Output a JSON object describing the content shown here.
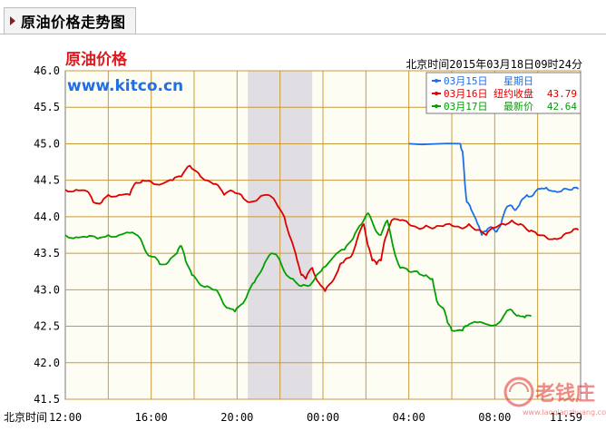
{
  "panel": {
    "tab_title": "原油价格走势图"
  },
  "chart_data": {
    "type": "line",
    "title": "原油价格",
    "source": "www.kitco.cn",
    "timestamp": "北京时间2015年03月18日09时24分",
    "x_axis_label": "北京时间",
    "x_ticks": [
      "12:00",
      "16:00",
      "20:00",
      "00:00",
      "04:00",
      "08:00",
      "11:59"
    ],
    "y_ticks": [
      "46.0",
      "45.5",
      "45.0",
      "44.5",
      "44.0",
      "43.5",
      "43.0",
      "42.5",
      "42.0",
      "41.5"
    ],
    "ylim": [
      41.5,
      46.0
    ],
    "xlim_hours": [
      12,
      36
    ],
    "shaded_period_hours": [
      20.5,
      23.5
    ],
    "grid": true,
    "legend": [
      {
        "date": "03月15日",
        "label": "星期日",
        "value": "",
        "color": "#1e6fe6"
      },
      {
        "date": "03月16日",
        "label": "纽约收盘",
        "value": "43.79",
        "color": "#dd0000"
      },
      {
        "date": "03月17日",
        "label": "最新价",
        "value": "42.64",
        "color": "#00a000"
      }
    ],
    "series": [
      {
        "name": "03月15日",
        "color": "#1e6fe6",
        "points": [
          [
            28.0,
            45.0
          ],
          [
            30.4,
            45.0
          ],
          [
            30.5,
            44.9
          ],
          [
            30.6,
            44.5
          ],
          [
            30.7,
            44.2
          ],
          [
            30.9,
            44.1
          ],
          [
            31.2,
            43.9
          ],
          [
            31.4,
            43.75
          ],
          [
            31.6,
            43.8
          ],
          [
            31.9,
            43.85
          ],
          [
            32.1,
            43.8
          ],
          [
            32.3,
            43.9
          ],
          [
            32.5,
            44.1
          ],
          [
            32.8,
            44.15
          ],
          [
            33.0,
            44.1
          ],
          [
            33.2,
            44.2
          ],
          [
            33.5,
            44.3
          ],
          [
            33.8,
            44.3
          ],
          [
            34.1,
            44.38
          ],
          [
            34.4,
            44.4
          ],
          [
            34.8,
            44.35
          ],
          [
            35.2,
            44.38
          ],
          [
            35.6,
            44.37
          ],
          [
            35.9,
            44.38
          ]
        ]
      },
      {
        "name": "03月16日",
        "color": "#dd0000",
        "points": [
          [
            12.0,
            44.37
          ],
          [
            12.5,
            44.37
          ],
          [
            13.0,
            44.35
          ],
          [
            13.3,
            44.2
          ],
          [
            13.7,
            44.2
          ],
          [
            14.0,
            44.3
          ],
          [
            14.5,
            44.3
          ],
          [
            15.0,
            44.3
          ],
          [
            15.3,
            44.47
          ],
          [
            15.6,
            44.5
          ],
          [
            16.0,
            44.48
          ],
          [
            16.5,
            44.45
          ],
          [
            17.0,
            44.5
          ],
          [
            17.4,
            44.55
          ],
          [
            17.8,
            44.7
          ],
          [
            18.2,
            44.6
          ],
          [
            18.6,
            44.5
          ],
          [
            19.0,
            44.45
          ],
          [
            19.4,
            44.3
          ],
          [
            19.8,
            44.35
          ],
          [
            20.2,
            44.3
          ],
          [
            20.6,
            44.2
          ],
          [
            21.0,
            44.25
          ],
          [
            21.4,
            44.3
          ],
          [
            21.8,
            44.2
          ],
          [
            22.2,
            44.0
          ],
          [
            22.5,
            43.7
          ],
          [
            22.8,
            43.4
          ],
          [
            23.0,
            43.2
          ],
          [
            23.2,
            43.15
          ],
          [
            23.5,
            43.3
          ],
          [
            23.8,
            43.1
          ],
          [
            24.1,
            42.98
          ],
          [
            24.4,
            43.1
          ],
          [
            24.8,
            43.35
          ],
          [
            25.0,
            43.4
          ],
          [
            25.3,
            43.45
          ],
          [
            25.6,
            43.7
          ],
          [
            25.9,
            43.9
          ],
          [
            26.1,
            43.6
          ],
          [
            26.3,
            43.4
          ],
          [
            26.5,
            43.35
          ],
          [
            26.7,
            43.4
          ],
          [
            26.9,
            43.7
          ],
          [
            27.2,
            43.95
          ],
          [
            27.6,
            43.95
          ],
          [
            28.0,
            43.9
          ],
          [
            28.4,
            43.85
          ],
          [
            28.8,
            43.88
          ],
          [
            29.2,
            43.85
          ],
          [
            29.6,
            43.87
          ],
          [
            30.0,
            43.88
          ],
          [
            30.4,
            43.85
          ],
          [
            30.8,
            43.9
          ],
          [
            31.2,
            43.82
          ],
          [
            31.6,
            43.75
          ],
          [
            32.0,
            43.85
          ],
          [
            32.4,
            43.9
          ],
          [
            32.8,
            43.95
          ],
          [
            33.2,
            43.9
          ],
          [
            33.6,
            43.8
          ],
          [
            34.0,
            43.75
          ],
          [
            34.4,
            43.72
          ],
          [
            34.8,
            43.7
          ],
          [
            35.2,
            43.75
          ],
          [
            35.6,
            43.8
          ],
          [
            35.9,
            43.82
          ]
        ]
      },
      {
        "name": "03月17日",
        "color": "#00a000",
        "points": [
          [
            12.0,
            43.75
          ],
          [
            12.5,
            43.72
          ],
          [
            13.0,
            43.72
          ],
          [
            13.5,
            43.7
          ],
          [
            14.0,
            43.75
          ],
          [
            14.5,
            43.75
          ],
          [
            15.0,
            43.78
          ],
          [
            15.5,
            43.7
          ],
          [
            15.8,
            43.5
          ],
          [
            16.1,
            43.45
          ],
          [
            16.4,
            43.35
          ],
          [
            16.8,
            43.38
          ],
          [
            17.2,
            43.5
          ],
          [
            17.4,
            43.6
          ],
          [
            17.6,
            43.4
          ],
          [
            17.9,
            43.2
          ],
          [
            18.2,
            43.1
          ],
          [
            18.6,
            43.05
          ],
          [
            19.0,
            43.0
          ],
          [
            19.3,
            42.85
          ],
          [
            19.6,
            42.75
          ],
          [
            19.9,
            42.7
          ],
          [
            20.2,
            42.8
          ],
          [
            20.5,
            42.95
          ],
          [
            20.8,
            43.1
          ],
          [
            21.2,
            43.3
          ],
          [
            21.6,
            43.5
          ],
          [
            21.9,
            43.45
          ],
          [
            22.2,
            43.25
          ],
          [
            22.6,
            43.15
          ],
          [
            23.0,
            43.05
          ],
          [
            23.3,
            43.05
          ],
          [
            23.7,
            43.2
          ],
          [
            24.0,
            43.3
          ],
          [
            24.5,
            43.45
          ],
          [
            25.0,
            43.55
          ],
          [
            25.4,
            43.7
          ],
          [
            25.8,
            43.9
          ],
          [
            26.1,
            44.05
          ],
          [
            26.4,
            43.85
          ],
          [
            26.7,
            43.75
          ],
          [
            27.0,
            43.95
          ],
          [
            27.3,
            43.55
          ],
          [
            27.6,
            43.3
          ],
          [
            28.0,
            43.25
          ],
          [
            28.4,
            43.25
          ],
          [
            28.8,
            43.2
          ],
          [
            29.1,
            43.15
          ],
          [
            29.3,
            42.85
          ],
          [
            29.6,
            42.75
          ],
          [
            29.8,
            42.55
          ],
          [
            30.0,
            42.44
          ],
          [
            30.5,
            42.44
          ],
          [
            30.7,
            42.5
          ],
          [
            31.2,
            42.55
          ],
          [
            31.7,
            42.52
          ],
          [
            32.2,
            42.55
          ],
          [
            32.5,
            42.68
          ],
          [
            32.8,
            42.72
          ],
          [
            33.1,
            42.65
          ],
          [
            33.4,
            42.62
          ],
          [
            33.7,
            42.64
          ]
        ]
      }
    ]
  }
}
